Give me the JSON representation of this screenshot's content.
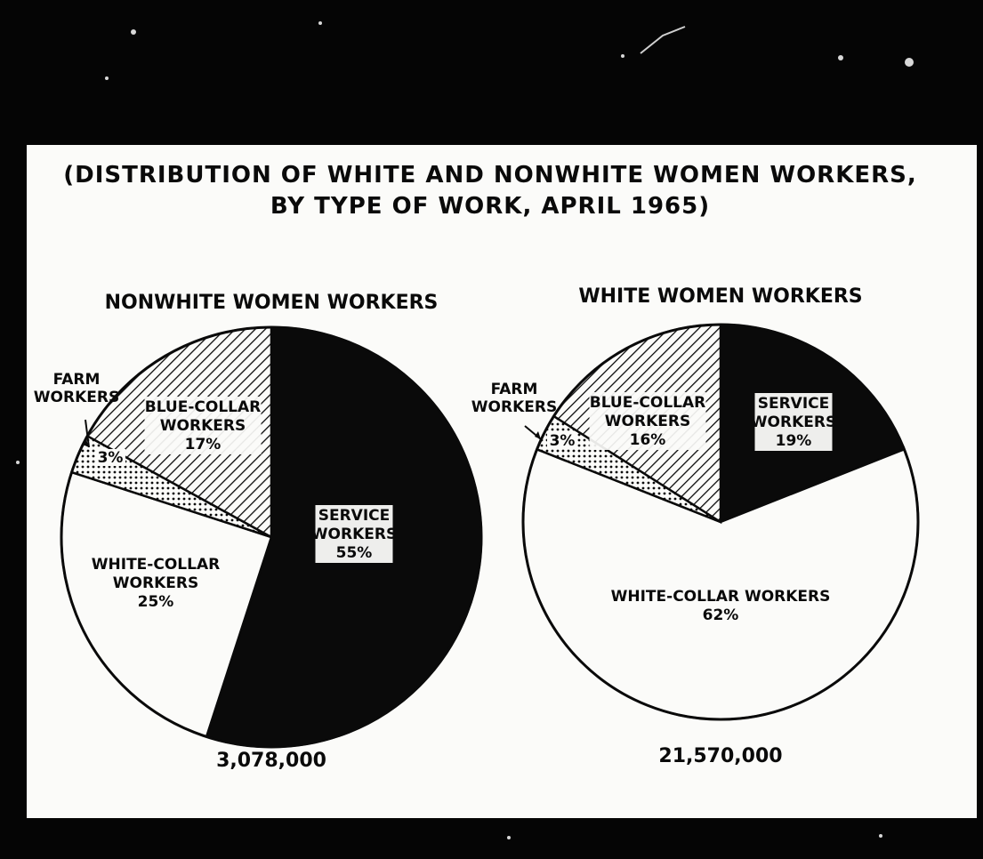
{
  "title_lines": [
    "(DISTRIBUTION OF WHITE AND NONWHITE WOMEN WORKERS,",
    "BY TYPE OF WORK, APRIL 1965)"
  ],
  "chart_data": [
    {
      "type": "pie",
      "title": "NONWHITE WOMEN WORKERS",
      "total": "3,078,000",
      "slices": [
        {
          "category": "SERVICE WORKERS",
          "value": 55,
          "value_label": "55%",
          "label_lines": [
            "SERVICE",
            "WORKERS"
          ],
          "fill": "black"
        },
        {
          "category": "WHITE-COLLAR WORKERS",
          "value": 25,
          "value_label": "25%",
          "label_lines": [
            "WHITE-COLLAR",
            "WORKERS"
          ],
          "fill": "white"
        },
        {
          "category": "FARM WORKERS",
          "value": 3,
          "value_label": "3%",
          "label_lines": [
            "FARM",
            "WORKERS"
          ],
          "fill": "dots"
        },
        {
          "category": "BLUE-COLLAR WORKERS",
          "value": 17,
          "value_label": "17%",
          "label_lines": [
            "BLUE-COLLAR",
            "WORKERS"
          ],
          "fill": "hatch"
        }
      ]
    },
    {
      "type": "pie",
      "title": "WHITE WOMEN WORKERS",
      "total": "21,570,000",
      "slices": [
        {
          "category": "SERVICE WORKERS",
          "value": 19,
          "value_label": "19%",
          "label_lines": [
            "SERVICE",
            "WORKERS"
          ],
          "fill": "black"
        },
        {
          "category": "WHITE-COLLAR WORKERS",
          "value": 62,
          "value_label": "62%",
          "label_lines": [
            "WHITE-COLLAR WORKERS"
          ],
          "fill": "white"
        },
        {
          "category": "FARM WORKERS",
          "value": 3,
          "value_label": "3%",
          "label_lines": [
            "FARM",
            "WORKERS"
          ],
          "fill": "dots"
        },
        {
          "category": "BLUE-COLLAR WORKERS",
          "value": 16,
          "value_label": "16%",
          "label_lines": [
            "BLUE-COLLAR",
            "WORKERS"
          ],
          "fill": "hatch"
        }
      ]
    }
  ],
  "colors": {
    "ink": "#0a0a0a",
    "paper": "#fbfbf9",
    "background": "#050505"
  }
}
